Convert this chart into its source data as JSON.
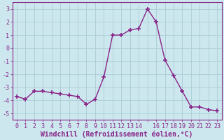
{
  "x": [
    0,
    1,
    2,
    3,
    4,
    5,
    6,
    7,
    8,
    9,
    10,
    11,
    12,
    13,
    14,
    15,
    16,
    17,
    18,
    19,
    20,
    21,
    22,
    23
  ],
  "y": [
    -3.7,
    -3.9,
    -3.3,
    -3.3,
    -3.4,
    -3.5,
    -3.6,
    -3.7,
    -4.3,
    -3.9,
    -2.2,
    1.0,
    1.0,
    1.4,
    1.5,
    3.0,
    2.0,
    -0.9,
    -2.1,
    -3.3,
    -4.5,
    -4.5,
    -4.7,
    -4.8
  ],
  "line_color": "#882288",
  "marker": "+",
  "marker_size": 4,
  "marker_lw": 1.2,
  "bg_color": "#cce8ee",
  "grid_color": "#aaccd4",
  "xlabel": "Windchill (Refroidissement éolien,°C)",
  "ylabel": "",
  "ylim": [
    -5.5,
    3.5
  ],
  "xlim": [
    -0.5,
    23.5
  ],
  "yticks": [
    -5,
    -4,
    -3,
    -2,
    -1,
    0,
    1,
    2,
    3
  ],
  "xtick_labels": [
    "0",
    "1",
    "2",
    "3",
    "4",
    "5",
    "6",
    "7",
    "8",
    "9",
    "10",
    "11",
    "12",
    "13",
    "14",
    "",
    "16",
    "17",
    "18",
    "19",
    "20",
    "21",
    "22",
    "23"
  ],
  "tick_color": "#882288",
  "tick_fontsize": 6,
  "xlabel_fontsize": 7,
  "border_color": "#882288",
  "linewidth": 1.0
}
